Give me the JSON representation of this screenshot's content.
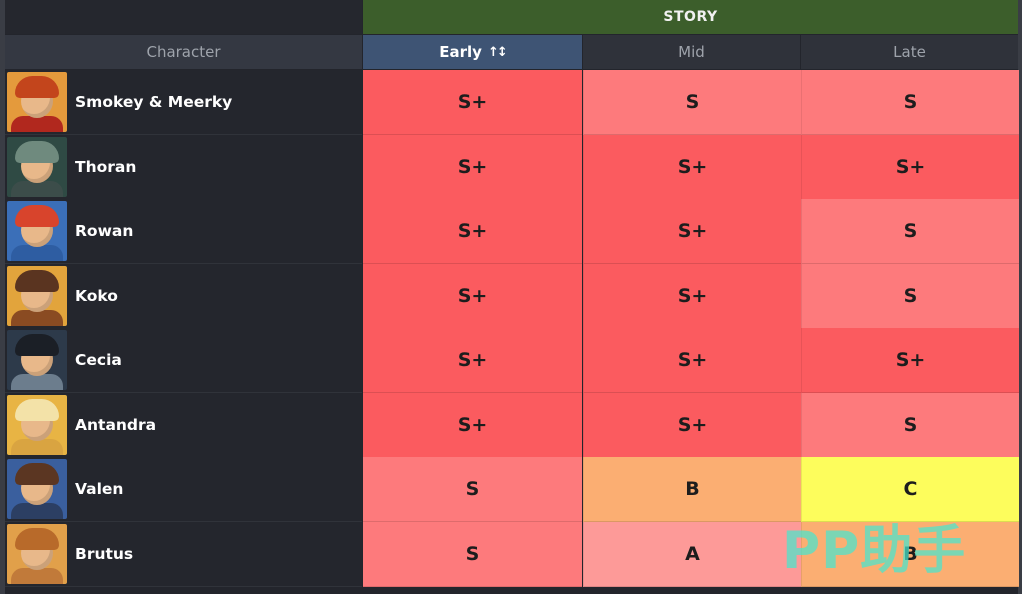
{
  "group_header": "STORY",
  "columns": {
    "character": "Character",
    "early": "Early",
    "early_sort_icon": "↑↕",
    "mid": "Mid",
    "late": "Late"
  },
  "colors": {
    "s_plus": "#fb5b5f",
    "s": "#fd7a7c",
    "a": "#fd9a98",
    "b": "#fbae72",
    "c": "#fdfd5c",
    "story_header": "#3c5e2b",
    "sorted_column": "#3e5474"
  },
  "rows": [
    {
      "name": "Smokey & Meerky",
      "early": "S+",
      "mid": "S",
      "late": "S",
      "avatar": {
        "bg": "#e49a3c",
        "hair": "#c3451c",
        "body": "#b1281e"
      }
    },
    {
      "name": "Thoran",
      "early": "S+",
      "mid": "S+",
      "late": "S+",
      "avatar": {
        "bg": "#2f4a44",
        "hair": "#6f8a7e",
        "body": "#3c4d4a"
      }
    },
    {
      "name": "Rowan",
      "early": "S+",
      "mid": "S+",
      "late": "S",
      "avatar": {
        "bg": "#3b6fb8",
        "hair": "#d8442c",
        "body": "#2e5da2"
      }
    },
    {
      "name": "Koko",
      "early": "S+",
      "mid": "S+",
      "late": "S",
      "avatar": {
        "bg": "#e2a43c",
        "hair": "#5a3420",
        "body": "#8a4b22"
      }
    },
    {
      "name": "Cecia",
      "early": "S+",
      "mid": "S+",
      "late": "S+",
      "avatar": {
        "bg": "#2d3a4a",
        "hair": "#1b1f26",
        "body": "#6c7d8d"
      }
    },
    {
      "name": "Antandra",
      "early": "S+",
      "mid": "S+",
      "late": "S",
      "avatar": {
        "bg": "#e8b444",
        "hair": "#f3e2a8",
        "body": "#d9a441"
      }
    },
    {
      "name": "Valen",
      "early": "S",
      "mid": "B",
      "late": "C",
      "avatar": {
        "bg": "#3a5f9e",
        "hair": "#5b3622",
        "body": "#2c3f63"
      }
    },
    {
      "name": "Brutus",
      "early": "S",
      "mid": "A",
      "late": "B",
      "avatar": {
        "bg": "#e1a04a",
        "hair": "#b86a2a",
        "body": "#c17a3a"
      }
    }
  ],
  "watermark": "PP助手"
}
